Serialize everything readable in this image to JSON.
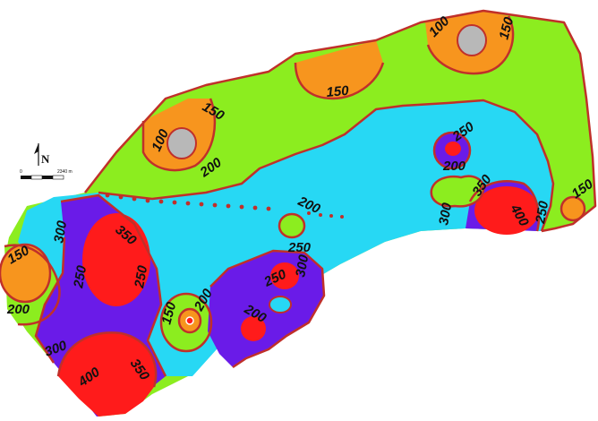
{
  "map": {
    "colors": {
      "under_100": "#b8b8b8",
      "100_150": "#f7951e",
      "150_250": "#8ced1f",
      "250_300": "#27d8f4",
      "300_350": "#6a1be8",
      "over_350": "#ff1b1b",
      "contour_line": "#c0302a"
    },
    "north_arrow": {
      "label": "N"
    },
    "scale_bar": {
      "start_label": "0",
      "end_label": "2340 m"
    },
    "contour_labels": [
      "100",
      "150",
      "150",
      "100",
      "150",
      "200",
      "250",
      "200",
      "350",
      "400",
      "300",
      "250",
      "150",
      "200",
      "200",
      "250",
      "150",
      "300",
      "250",
      "250",
      "350",
      "250",
      "300",
      "150",
      "200",
      "200",
      "300",
      "400",
      "350"
    ]
  }
}
